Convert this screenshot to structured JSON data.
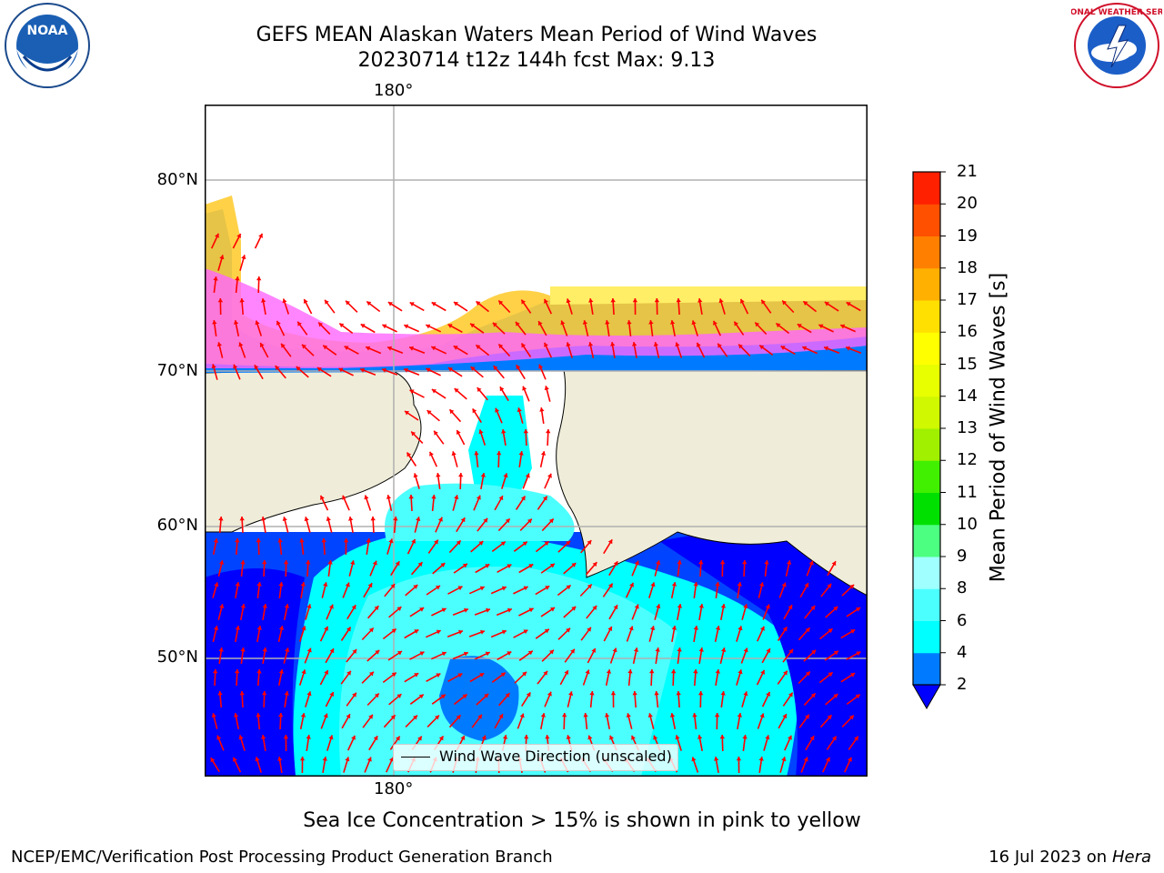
{
  "header": {
    "title_line1": "GEFS MEAN Alaskan Waters Mean Period of Wind Waves",
    "title_line2": "20230714 t12z 144h fcst   Max: 9.13"
  },
  "logos": {
    "noaa_text": "NOAA",
    "noaa_ring_text": "NATIONAL OCEANIC AND ATMOSPHERIC ADMINISTRATION · U.S. DEPARTMENT OF COMMERCE",
    "nws_ring_text": "NATIONAL WEATHER SERVICE"
  },
  "map": {
    "lon_label_top": "180°",
    "lon_label_bottom": "180°",
    "lat_labels": [
      "80°N",
      "70°N",
      "60°N",
      "50°N"
    ],
    "legend_label": "Wind Wave Direction (unscaled)",
    "colors": {
      "land": "#efedd9",
      "ocean_low": "#0000ff",
      "ocean_2_4": "#007bff",
      "ocean_4_6": "#00ffff",
      "ocean_6_8": "#4cffff",
      "arrows": "#ff0000"
    }
  },
  "colorbar": {
    "label": "Mean Period of Wind Waves [s]",
    "ticks": [
      "2",
      "4",
      "6",
      "8",
      "9",
      "10",
      "11",
      "12",
      "13",
      "14",
      "15",
      "16",
      "17",
      "18",
      "19",
      "20",
      "21"
    ],
    "colors": [
      "#007bff",
      "#00ffff",
      "#4cffff",
      "#a0ffff",
      "#4cff80",
      "#00e000",
      "#40f000",
      "#a0f000",
      "#d0f800",
      "#e8ff00",
      "#ffff00",
      "#ffe000",
      "#ffb000",
      "#ff8000",
      "#ff5000",
      "#ff2000",
      "#ff0000"
    ],
    "extend_color": "#0000ff"
  },
  "footer": {
    "ice_note": "Sea Ice Concentration > 15% is shown in pink to yellow",
    "left": "NCEP/EMC/Verification Post Processing Product Generation Branch",
    "date": "16 Jul 2023 on ",
    "machine": "Hera"
  }
}
